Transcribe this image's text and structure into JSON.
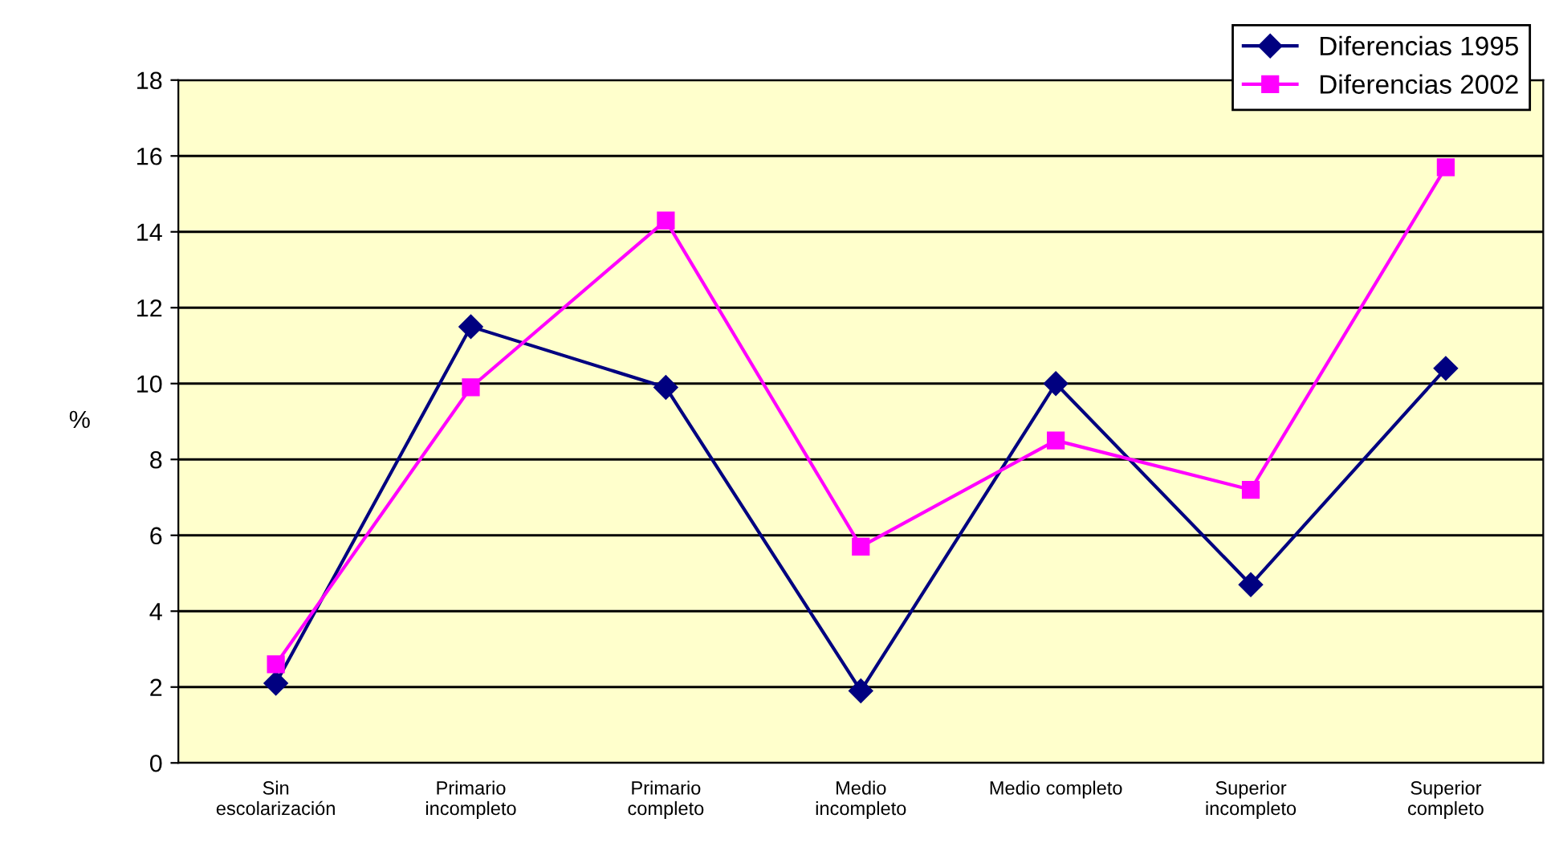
{
  "chart_data": {
    "type": "line",
    "ylabel": "%",
    "categories": [
      "Sin\nescolarización",
      "Primario\nincompleto",
      "Primario\ncompleto",
      "Medio\nincompleto",
      "Medio completo",
      "Superior\nincompleto",
      "Superior\ncompleto"
    ],
    "series": [
      {
        "name": "Diferencias 1995",
        "color": "#000080",
        "marker": "diamond",
        "values": [
          2.1,
          11.5,
          9.9,
          1.9,
          10.0,
          4.7,
          10.4
        ]
      },
      {
        "name": "Diferencias 2002",
        "color": "#ff00ff",
        "marker": "square",
        "values": [
          2.6,
          9.9,
          14.3,
          5.7,
          8.5,
          7.2,
          15.7
        ]
      }
    ],
    "ylim": [
      0,
      18
    ],
    "yticks": [
      0,
      2,
      4,
      6,
      8,
      10,
      12,
      14,
      16,
      18
    ],
    "grid": "y",
    "legend": "top right",
    "line_style": "solid"
  }
}
